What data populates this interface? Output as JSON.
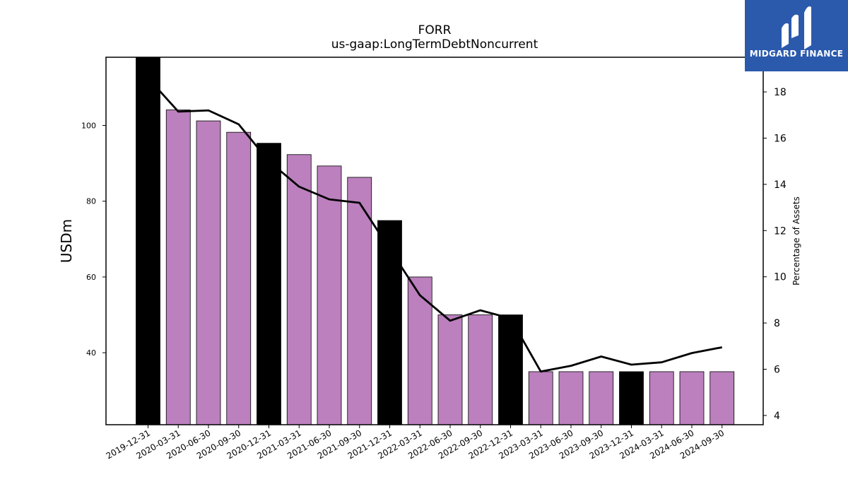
{
  "chart_data": {
    "type": "bar",
    "title": "FORR",
    "subtitle": "us-gaap:LongTermDebtNoncurrent",
    "ylabel": "USDm",
    "y2label": "Percentage of Assets",
    "ylim": [
      21,
      118
    ],
    "y2lim": [
      3.6,
      19.5
    ],
    "yticks": [
      40,
      60,
      80,
      100
    ],
    "y2ticks": [
      4,
      6,
      8,
      10,
      12,
      14,
      16,
      18
    ],
    "categories": [
      "2019-12-31",
      "2020-03-31",
      "2020-06-30",
      "2020-09-30",
      "2020-12-31",
      "2021-03-31",
      "2021-06-30",
      "2021-09-30",
      "2021-12-31",
      "2022-03-31",
      "2022-06-30",
      "2022-09-30",
      "2022-12-31",
      "2023-03-31",
      "2023-06-30",
      "2023-09-30",
      "2023-12-31",
      "2024-03-31",
      "2024-06-30",
      "2024-09-30"
    ],
    "series": [
      {
        "kind": "bar",
        "axis": "left",
        "values": [
          118.0,
          104.1,
          101.2,
          98.2,
          95.3,
          92.3,
          89.3,
          86.3,
          74.9,
          60.0,
          50.0,
          50.0,
          50.0,
          35.0,
          35.0,
          35.0,
          35.0,
          35.0,
          35.0,
          35.0
        ],
        "colors": [
          "#000000",
          "#bb80bd",
          "#bb80bd",
          "#bb80bd",
          "#000000",
          "#bb80bd",
          "#bb80bd",
          "#bb80bd",
          "#000000",
          "#bb80bd",
          "#bb80bd",
          "#bb80bd",
          "#000000",
          "#bb80bd",
          "#bb80bd",
          "#bb80bd",
          "#000000",
          "#bb80bd",
          "#bb80bd",
          "#bb80bd"
        ]
      },
      {
        "kind": "line",
        "axis": "right",
        "color": "#000000",
        "values": [
          18.6,
          17.15,
          17.2,
          16.6,
          15.0,
          13.9,
          13.35,
          13.2,
          11.2,
          9.2,
          8.1,
          8.55,
          8.2,
          5.9,
          6.15,
          6.55,
          6.2,
          6.3,
          6.7,
          6.95
        ]
      }
    ],
    "grid": false,
    "legend": "none"
  },
  "logo": {
    "text": "MIDGARD FINANCE",
    "color": "#2b5aad"
  }
}
